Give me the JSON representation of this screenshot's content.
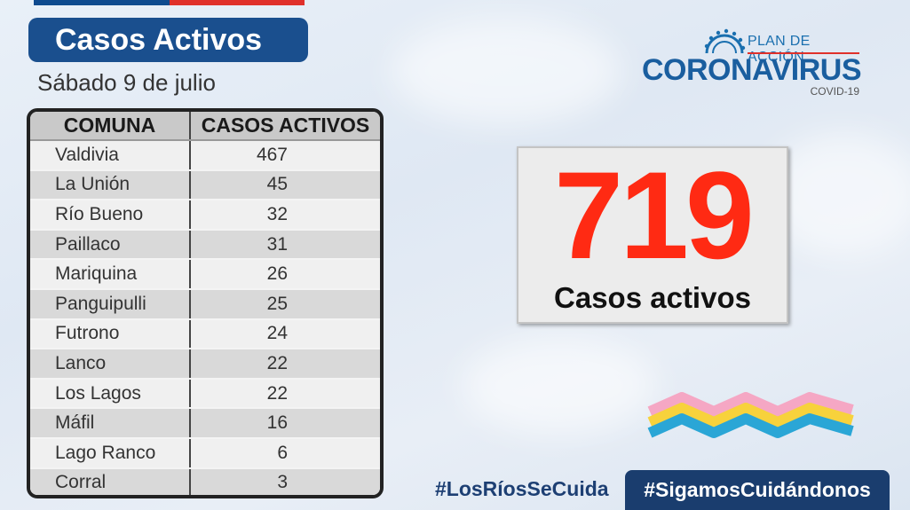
{
  "header": {
    "title": "Casos Activos",
    "date": "Sábado 9 de julio"
  },
  "table": {
    "columns": [
      "COMUNA",
      "CASOS ACTIVOS"
    ],
    "rows": [
      {
        "comuna": "Valdivia",
        "casos": "467"
      },
      {
        "comuna": "La Unión",
        "casos": "45"
      },
      {
        "comuna": "Río Bueno",
        "casos": "32"
      },
      {
        "comuna": "Paillaco",
        "casos": "31"
      },
      {
        "comuna": "Mariquina",
        "casos": "26"
      },
      {
        "comuna": "Panguipulli",
        "casos": "25"
      },
      {
        "comuna": "Futrono",
        "casos": "24"
      },
      {
        "comuna": "Lanco",
        "casos": "22"
      },
      {
        "comuna": "Los Lagos",
        "casos": "22"
      },
      {
        "comuna": "Máfil",
        "casos": "16"
      },
      {
        "comuna": "Lago Ranco",
        "casos": "6"
      },
      {
        "comuna": "Corral",
        "casos": "3"
      }
    ]
  },
  "logo": {
    "plan": "PLAN DE ACCIÓN",
    "name": "CORONAVIRUS",
    "sub": "COVID-19"
  },
  "summary": {
    "total": "719",
    "label": "Casos activos"
  },
  "footer": {
    "hashtag_left": "#LosRíosSeCuida",
    "hashtag_right": "#SigamosCuidándonos"
  },
  "colors": {
    "title_bg": "#1a4f8e",
    "number_red": "#ff2a13",
    "logo_blue": "#1a5e9f",
    "footer_navy": "#1a3d6e"
  }
}
